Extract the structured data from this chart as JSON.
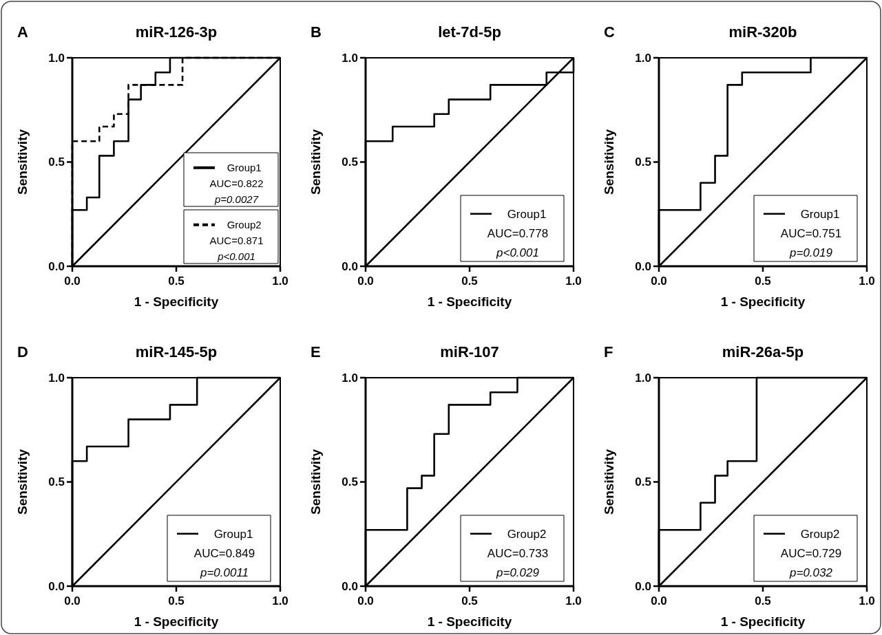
{
  "chart_data": [
    {
      "type": "line",
      "title": "miR-126-3p",
      "xlabel": "1 - Specificity",
      "ylabel": "Sensitivity",
      "xlim": [
        0,
        1
      ],
      "ylim": [
        0,
        1
      ],
      "xticks": [
        {
          "value": 0,
          "label": "0.0"
        },
        {
          "value": 0.5,
          "label": "0.5"
        },
        {
          "value": 1,
          "label": "1.0"
        }
      ],
      "yticks": [
        {
          "value": 0,
          "label": "0.0"
        },
        {
          "value": 0.5,
          "label": "0.5"
        },
        {
          "value": 1,
          "label": "1.0"
        }
      ],
      "legend": "bottom right",
      "annotations": [
        "A",
        "AUC=0.822",
        "p=0.0027",
        "AUC=0.871",
        "p<0.001"
      ],
      "series": [
        {
          "name": "Group1",
          "color": "#000000",
          "line_style": "solid",
          "x": [
            0,
            0,
            0.07,
            0.07,
            0.13,
            0.13,
            0.2,
            0.2,
            0.27,
            0.27,
            0.33,
            0.33,
            0.4,
            0.4,
            0.47,
            0.47,
            1
          ],
          "values": [
            0,
            0.27,
            0.27,
            0.33,
            0.33,
            0.53,
            0.53,
            0.6,
            0.6,
            0.8,
            0.8,
            0.87,
            0.87,
            0.93,
            0.93,
            1,
            1
          ]
        },
        {
          "name": "Group2",
          "color": "#000000",
          "line_style": "dashed",
          "x": [
            0,
            0,
            0.13,
            0.13,
            0.2,
            0.2,
            0.27,
            0.27,
            0.53,
            0.53,
            1
          ],
          "values": [
            0,
            0.6,
            0.6,
            0.67,
            0.67,
            0.73,
            0.73,
            0.87,
            0.87,
            1,
            1
          ]
        },
        {
          "color": "#000000",
          "line_style": "solid",
          "x": [
            0,
            1
          ],
          "values": [
            0,
            1
          ]
        }
      ]
    },
    {
      "type": "line",
      "title": "let-7d-5p",
      "xlabel": "1 - Specificity",
      "ylabel": "Sensitivity",
      "xlim": [
        0,
        1
      ],
      "ylim": [
        0,
        1
      ],
      "xticks": [
        {
          "value": 0,
          "label": "0.0"
        },
        {
          "value": 0.5,
          "label": "0.5"
        },
        {
          "value": 1,
          "label": "1.0"
        }
      ],
      "yticks": [
        {
          "value": 0,
          "label": "0.0"
        },
        {
          "value": 0.5,
          "label": "0.5"
        },
        {
          "value": 1,
          "label": "1.0"
        }
      ],
      "legend": "bottom right",
      "annotations": [
        "B",
        "AUC=0.778",
        "p<0.001"
      ],
      "series": [
        {
          "name": "Group1",
          "color": "#000000",
          "line_style": "solid",
          "x": [
            0,
            0,
            0.13,
            0.13,
            0.33,
            0.33,
            0.4,
            0.4,
            0.6,
            0.6,
            0.87,
            0.87,
            1,
            1
          ],
          "values": [
            0,
            0.6,
            0.6,
            0.67,
            0.67,
            0.73,
            0.73,
            0.8,
            0.8,
            0.87,
            0.87,
            0.93,
            0.93,
            1
          ]
        },
        {
          "color": "#000000",
          "line_style": "solid",
          "x": [
            0,
            1
          ],
          "values": [
            0,
            1
          ]
        }
      ]
    },
    {
      "type": "line",
      "title": "miR-320b",
      "xlabel": "1 - Specificity",
      "ylabel": "Sensitivity",
      "xlim": [
        0,
        1
      ],
      "ylim": [
        0,
        1
      ],
      "xticks": [
        {
          "value": 0,
          "label": "0.0"
        },
        {
          "value": 0.5,
          "label": "0.5"
        },
        {
          "value": 1,
          "label": "1.0"
        }
      ],
      "yticks": [
        {
          "value": 0,
          "label": "0.0"
        },
        {
          "value": 0.5,
          "label": "0.5"
        },
        {
          "value": 1,
          "label": "1.0"
        }
      ],
      "legend": "bottom right",
      "annotations": [
        "C",
        "AUC=0.751",
        "p=0.019"
      ],
      "series": [
        {
          "name": "Group1",
          "color": "#000000",
          "line_style": "solid",
          "x": [
            0,
            0,
            0.2,
            0.2,
            0.27,
            0.27,
            0.33,
            0.33,
            0.4,
            0.4,
            0.73,
            0.73,
            1
          ],
          "values": [
            0,
            0.27,
            0.27,
            0.4,
            0.4,
            0.53,
            0.53,
            0.87,
            0.87,
            0.93,
            0.93,
            1,
            1
          ]
        },
        {
          "color": "#000000",
          "line_style": "solid",
          "x": [
            0,
            1
          ],
          "values": [
            0,
            1
          ]
        }
      ]
    },
    {
      "type": "line",
      "title": "miR-145-5p",
      "xlabel": "1 - Specificity",
      "ylabel": "Sensitivity",
      "xlim": [
        0,
        1
      ],
      "ylim": [
        0,
        1
      ],
      "xticks": [
        {
          "value": 0,
          "label": "0.0"
        },
        {
          "value": 0.5,
          "label": "0.5"
        },
        {
          "value": 1,
          "label": "1.0"
        }
      ],
      "yticks": [
        {
          "value": 0,
          "label": "0.0"
        },
        {
          "value": 0.5,
          "label": "0.5"
        },
        {
          "value": 1,
          "label": "1.0"
        }
      ],
      "legend": "bottom right",
      "annotations": [
        "D",
        "AUC=0.849",
        "p=0.0011"
      ],
      "series": [
        {
          "name": "Group1",
          "color": "#000000",
          "line_style": "solid",
          "x": [
            0,
            0,
            0.07,
            0.07,
            0.27,
            0.27,
            0.47,
            0.47,
            0.6,
            0.6,
            1
          ],
          "values": [
            0,
            0.6,
            0.6,
            0.67,
            0.67,
            0.8,
            0.8,
            0.87,
            0.87,
            1,
            1
          ]
        },
        {
          "color": "#000000",
          "line_style": "solid",
          "x": [
            0,
            1
          ],
          "values": [
            0,
            1
          ]
        }
      ]
    },
    {
      "type": "line",
      "title": "miR-107",
      "xlabel": "1 - Specificity",
      "ylabel": "Sensitivity",
      "xlim": [
        0,
        1
      ],
      "ylim": [
        0,
        1
      ],
      "xticks": [
        {
          "value": 0,
          "label": "0.0"
        },
        {
          "value": 0.5,
          "label": "0.5"
        },
        {
          "value": 1,
          "label": "1.0"
        }
      ],
      "yticks": [
        {
          "value": 0,
          "label": "0.0"
        },
        {
          "value": 0.5,
          "label": "0.5"
        },
        {
          "value": 1,
          "label": "1.0"
        }
      ],
      "legend": "bottom right",
      "annotations": [
        "E",
        "AUC=0.733",
        "p=0.029"
      ],
      "series": [
        {
          "name": "Group2",
          "color": "#000000",
          "line_style": "solid",
          "x": [
            0,
            0,
            0.2,
            0.2,
            0.27,
            0.27,
            0.33,
            0.33,
            0.4,
            0.4,
            0.6,
            0.6,
            0.73,
            0.73,
            1
          ],
          "values": [
            0,
            0.27,
            0.27,
            0.47,
            0.47,
            0.53,
            0.53,
            0.73,
            0.73,
            0.87,
            0.87,
            0.93,
            0.93,
            1,
            1
          ]
        },
        {
          "color": "#000000",
          "line_style": "solid",
          "x": [
            0,
            1
          ],
          "values": [
            0,
            1
          ]
        }
      ]
    },
    {
      "type": "line",
      "title": "miR-26a-5p",
      "xlabel": "1 - Specificity",
      "ylabel": "Sensitivity",
      "xlim": [
        0,
        1
      ],
      "ylim": [
        0,
        1
      ],
      "xticks": [
        {
          "value": 0,
          "label": "0.0"
        },
        {
          "value": 0.5,
          "label": "0.5"
        },
        {
          "value": 1,
          "label": "1.0"
        }
      ],
      "yticks": [
        {
          "value": 0,
          "label": "0.0"
        },
        {
          "value": 0.5,
          "label": "0.5"
        },
        {
          "value": 1,
          "label": "1.0"
        }
      ],
      "legend": "bottom right",
      "annotations": [
        "F",
        "AUC=0.729",
        "p=0.032"
      ],
      "series": [
        {
          "name": "Group2",
          "color": "#000000",
          "line_style": "solid",
          "x": [
            0,
            0,
            0.2,
            0.2,
            0.27,
            0.27,
            0.33,
            0.33,
            0.47,
            0.47,
            1
          ],
          "values": [
            0,
            0.27,
            0.27,
            0.4,
            0.4,
            0.53,
            0.53,
            0.6,
            0.6,
            1,
            1
          ]
        },
        {
          "color": "#000000",
          "line_style": "solid",
          "x": [
            0,
            1
          ],
          "values": [
            0,
            1
          ]
        }
      ]
    }
  ]
}
